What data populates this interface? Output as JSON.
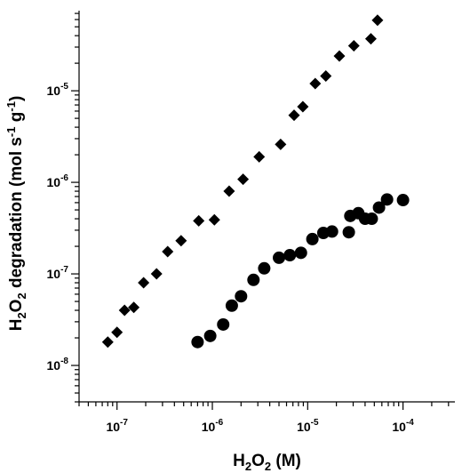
{
  "chart_data": {
    "type": "scatter",
    "x_scale": "log",
    "y_scale": "log",
    "xlim": [
      4e-08,
      0.00035
    ],
    "ylim": [
      4e-09,
      7.5e-05
    ],
    "xlabel": {
      "main": "H",
      "sub": "2",
      "tail1": "O",
      "sub2": "2",
      "tail2": " (M)"
    },
    "ylabel": {
      "main": "H",
      "sub": "2",
      "tail1": "O",
      "sub2": "2",
      "tail2": " degradation (mol s",
      "sup": "-1",
      "tail3": " g",
      "sup2": "-1",
      "tail4": ")"
    },
    "x_ticks": [
      {
        "value": 1e-07,
        "base": "10",
        "exp": "-7"
      },
      {
        "value": 1e-06,
        "base": "10",
        "exp": "-6"
      },
      {
        "value": 1e-05,
        "base": "10",
        "exp": "-5"
      },
      {
        "value": 0.0001,
        "base": "10",
        "exp": "-4"
      }
    ],
    "y_ticks": [
      {
        "value": 1e-08,
        "base": "10",
        "exp": "-8"
      },
      {
        "value": 1e-07,
        "base": "10",
        "exp": "-7"
      },
      {
        "value": 1e-06,
        "base": "10",
        "exp": "-6"
      },
      {
        "value": 1e-05,
        "base": "10",
        "exp": "-5"
      }
    ],
    "grid": false,
    "series": [
      {
        "marker": "diamond",
        "color": "#000000",
        "points": [
          [
            8e-08,
            1.8e-08
          ],
          [
            1e-07,
            2.3e-08
          ],
          [
            1.2e-07,
            4e-08
          ],
          [
            1.5e-07,
            4.3e-08
          ],
          [
            1.9e-07,
            8e-08
          ],
          [
            2.6e-07,
            1e-07
          ],
          [
            3.4e-07,
            1.75e-07
          ],
          [
            4.7e-07,
            2.3e-07
          ],
          [
            7.2e-07,
            3.8e-07
          ],
          [
            1.05e-06,
            3.9e-07
          ],
          [
            1.5e-06,
            8e-07
          ],
          [
            2.1e-06,
            1.08e-06
          ],
          [
            3.1e-06,
            1.9e-06
          ],
          [
            5.2e-06,
            2.6e-06
          ],
          [
            7.2e-06,
            5.4e-06
          ],
          [
            8.9e-06,
            6.7e-06
          ],
          [
            1.2e-05,
            1.2e-05
          ],
          [
            1.55e-05,
            1.45e-05
          ],
          [
            2.15e-05,
            2.4e-05
          ],
          [
            3.05e-05,
            3.1e-05
          ],
          [
            4.6e-05,
            3.7e-05
          ],
          [
            5.4e-05,
            5.9e-05
          ]
        ]
      },
      {
        "marker": "circle",
        "color": "#000000",
        "points": [
          [
            7e-07,
            1.8e-08
          ],
          [
            9.5e-07,
            2.1e-08
          ],
          [
            1.3e-06,
            2.8e-08
          ],
          [
            1.6e-06,
            4.5e-08
          ],
          [
            2e-06,
            5.7e-08
          ],
          [
            2.7e-06,
            8.6e-08
          ],
          [
            3.5e-06,
            1.15e-07
          ],
          [
            5e-06,
            1.5e-07
          ],
          [
            6.5e-06,
            1.6e-07
          ],
          [
            8.5e-06,
            1.7e-07
          ],
          [
            1.12e-05,
            2.4e-07
          ],
          [
            1.46e-05,
            2.8e-07
          ],
          [
            1.8e-05,
            2.9e-07
          ],
          [
            2.7e-05,
            2.85e-07
          ],
          [
            2.8e-05,
            4.3e-07
          ],
          [
            3.4e-05,
            4.6e-07
          ],
          [
            4e-05,
            4e-07
          ],
          [
            4.7e-05,
            4e-07
          ],
          [
            5.6e-05,
            5.3e-07
          ],
          [
            6.8e-05,
            6.5e-07
          ],
          [
            0.0001,
            6.4e-07
          ]
        ]
      }
    ]
  }
}
